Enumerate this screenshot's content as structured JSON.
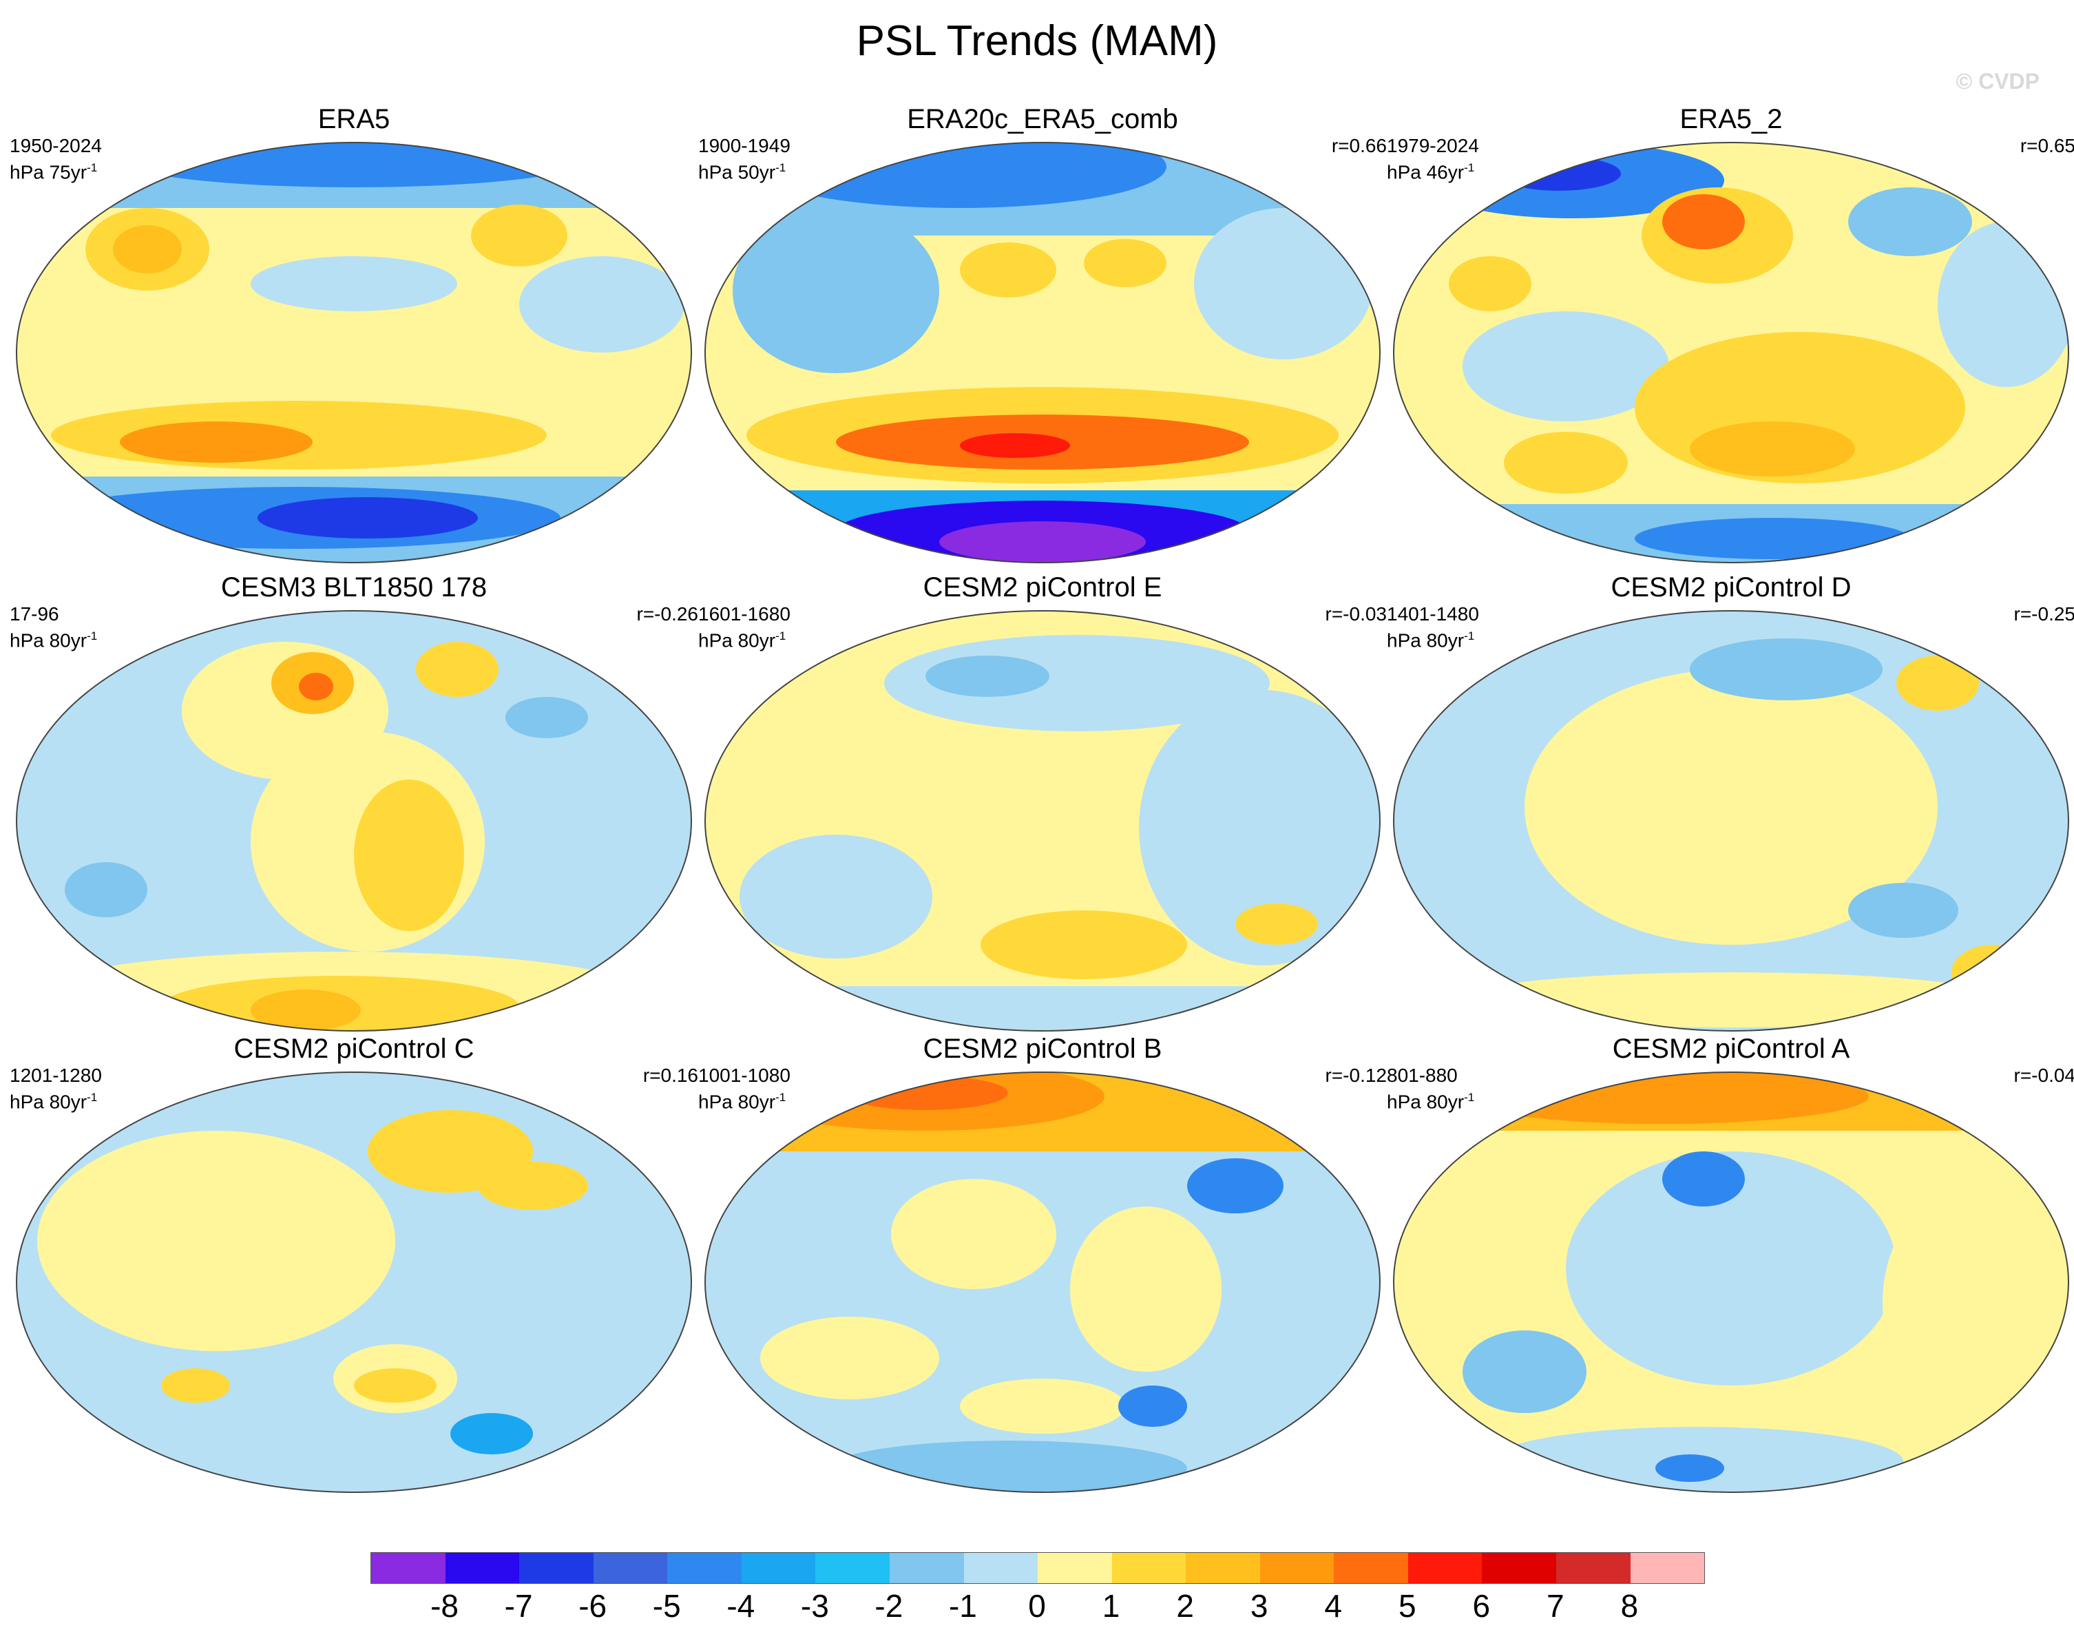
{
  "title": "PSL Trends (MAM)",
  "watermark": "© CVDP",
  "panels": [
    {
      "title": "ERA5",
      "period": "1950-2024",
      "units_base": "hPa 75yr",
      "units_exp": "-1",
      "r": ""
    },
    {
      "title": "ERA20c_ERA5_comb",
      "period": "1900-1949",
      "units_base": "hPa 50yr",
      "units_exp": "-1",
      "r": "r=0.66"
    },
    {
      "title": "ERA5_2",
      "period": "1979-2024",
      "units_base": "hPa 46yr",
      "units_exp": "-1",
      "r": "r=0.65"
    },
    {
      "title": "CESM3 BLT1850 178",
      "period": "17-96",
      "units_base": "hPa 80yr",
      "units_exp": "-1",
      "r": "r=-0.26"
    },
    {
      "title": "CESM2 piControl E",
      "period": "1601-1680",
      "units_base": "hPa 80yr",
      "units_exp": "-1",
      "r": "r=-0.03"
    },
    {
      "title": "CESM2 piControl D",
      "period": "1401-1480",
      "units_base": "hPa 80yr",
      "units_exp": "-1",
      "r": "r=-0.25"
    },
    {
      "title": "CESM2 piControl C",
      "period": "1201-1280",
      "units_base": "hPa 80yr",
      "units_exp": "-1",
      "r": "r=0.16"
    },
    {
      "title": "CESM2 piControl B",
      "period": "1001-1080",
      "units_base": "hPa 80yr",
      "units_exp": "-1",
      "r": "r=-0.12"
    },
    {
      "title": "CESM2 piControl A",
      "period": "801-880",
      "units_base": "hPa 80yr",
      "units_exp": "-1",
      "r": "r=-0.04"
    }
  ],
  "colorbar": {
    "labels": [
      "-8",
      "-7",
      "-6",
      "-5",
      "-4",
      "-3",
      "-2",
      "-1",
      "0",
      "1",
      "2",
      "3",
      "4",
      "5",
      "6",
      "7",
      "8"
    ],
    "colors": [
      "#8a2be2",
      "#2a08f0",
      "#1e3ae6",
      "#3c64dc",
      "#2e88f0",
      "#1aa6f0",
      "#20c0f5",
      "#80c6ee",
      "#b8e0f4",
      "#fff69c",
      "#ffd93a",
      "#ffbf1c",
      "#ff9a0e",
      "#ff6e0e",
      "#ff1a0a",
      "#e00000",
      "#d42a2a",
      "#ffb6b6"
    ]
  },
  "chart_data": {
    "type": "heatmap",
    "title": "PSL Trends (MAM)",
    "colorbar_levels": [
      -8,
      -7,
      -6,
      -5,
      -4,
      -3,
      -2,
      -1,
      0,
      1,
      2,
      3,
      4,
      5,
      6,
      7,
      8
    ],
    "panels": [
      {
        "name": "ERA5",
        "r": null
      },
      {
        "name": "ERA20c_ERA5_comb",
        "r": 0.66
      },
      {
        "name": "ERA5_2",
        "r": 0.65
      },
      {
        "name": "CESM3 BLT1850 178",
        "r": -0.26
      },
      {
        "name": "CESM2 piControl E",
        "r": -0.03
      },
      {
        "name": "CESM2 piControl D",
        "r": -0.25
      },
      {
        "name": "CESM2 piControl C",
        "r": 0.16
      },
      {
        "name": "CESM2 piControl B",
        "r": -0.12
      },
      {
        "name": "CESM2 piControl A",
        "r": -0.04
      }
    ]
  }
}
